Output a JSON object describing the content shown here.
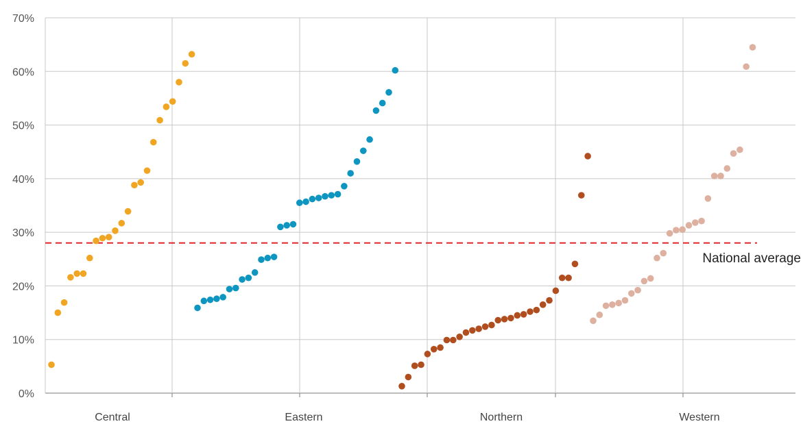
{
  "chart_data": {
    "type": "scatter",
    "categories": [
      "Central",
      "Eastern",
      "Northern",
      "Western"
    ],
    "ylim": [
      0,
      70
    ],
    "yticks": [
      0,
      10,
      20,
      30,
      40,
      50,
      60,
      70
    ],
    "ytick_format": "percent",
    "grid": {
      "horizontal": true,
      "vertical": true
    },
    "legend": "none",
    "reference_line": {
      "label": "National average",
      "value": 28,
      "color": "#e0262b",
      "style": "dashed"
    },
    "series": [
      {
        "category": "Central",
        "color": "#f0a623",
        "values": [
          5.3,
          15.0,
          16.9,
          21.6,
          22.3,
          22.3,
          25.2,
          28.4,
          28.9,
          29.1,
          30.3,
          31.7,
          33.9,
          38.8,
          39.3,
          41.5,
          46.8,
          50.9,
          53.4,
          54.4,
          58.0,
          61.5,
          63.2
        ]
      },
      {
        "category": "Eastern",
        "color": "#0e96c0",
        "values": [
          15.9,
          17.2,
          17.4,
          17.6,
          17.9,
          19.4,
          19.6,
          21.2,
          21.5,
          22.5,
          24.9,
          25.2,
          25.4,
          31.0,
          31.3,
          31.5,
          35.5,
          35.7,
          36.2,
          36.4,
          36.7,
          36.9,
          37.1,
          38.6,
          41.0,
          43.2,
          45.2,
          47.3,
          52.7,
          54.1,
          56.1,
          60.2
        ]
      },
      {
        "category": "Northern",
        "color": "#b04e1f",
        "values": [
          1.3,
          3.0,
          5.1,
          5.3,
          7.3,
          8.2,
          8.5,
          9.9,
          9.9,
          10.5,
          11.3,
          11.7,
          12.0,
          12.4,
          12.7,
          13.6,
          13.8,
          14.0,
          14.5,
          14.7,
          15.2,
          15.5,
          16.5,
          17.3,
          19.1,
          21.5,
          21.5,
          24.1,
          36.9,
          44.2
        ]
      },
      {
        "category": "Western",
        "color": "#ddb0a0",
        "values": [
          13.5,
          14.6,
          16.3,
          16.5,
          16.8,
          17.3,
          18.6,
          19.2,
          20.9,
          21.4,
          25.2,
          26.1,
          29.8,
          30.4,
          30.5,
          31.3,
          31.8,
          32.1,
          36.3,
          40.5,
          40.5,
          41.9,
          44.7,
          45.4,
          60.9,
          64.5
        ]
      }
    ]
  }
}
